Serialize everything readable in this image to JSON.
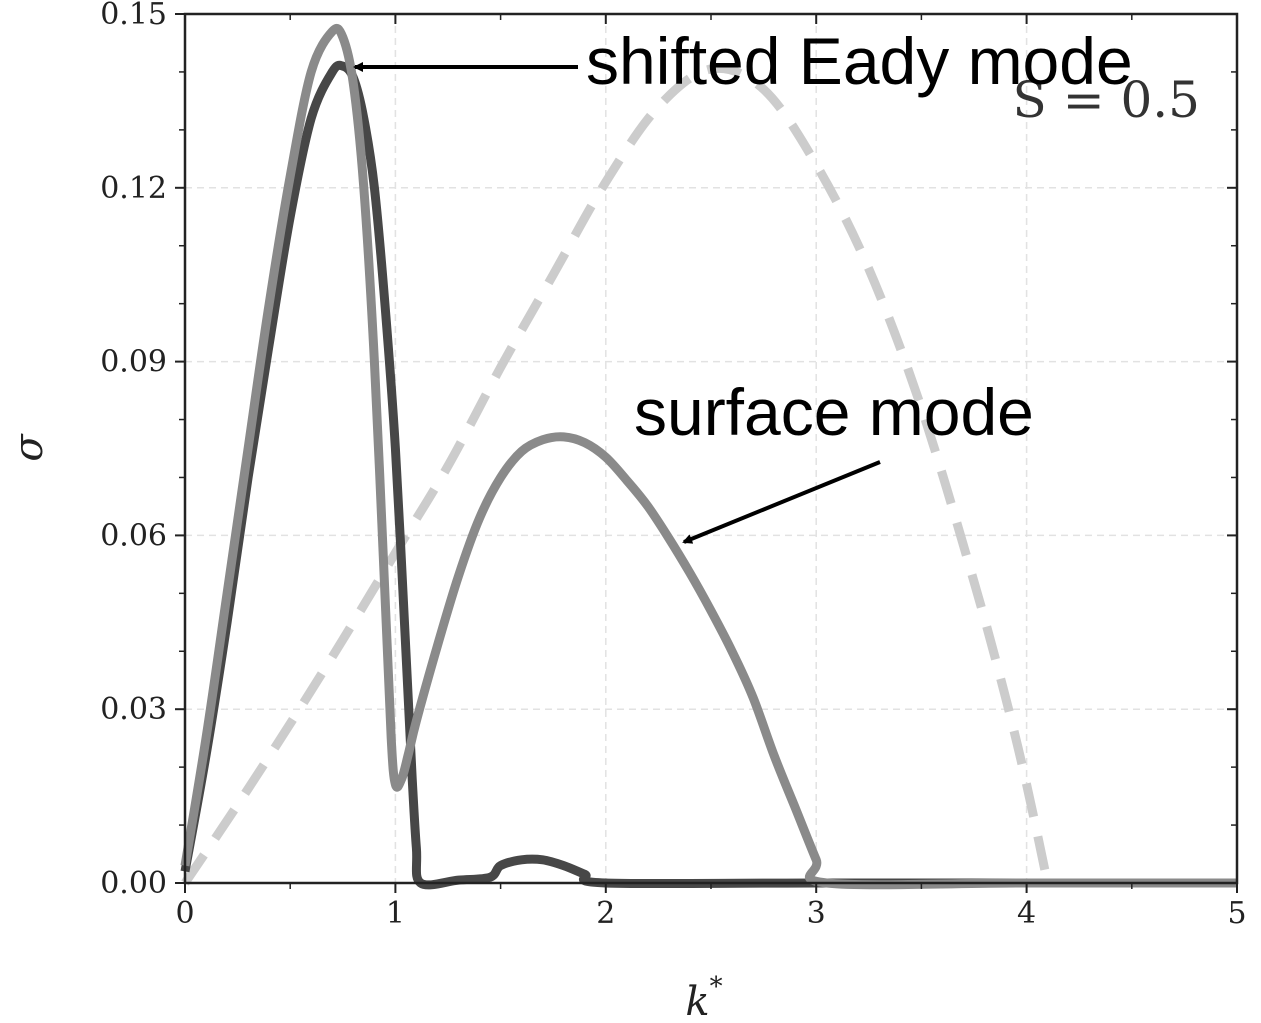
{
  "chart_data": {
    "type": "line",
    "xlabel": "k",
    "xlabel_sup": "*",
    "ylabel": "σ",
    "xlim": [
      0,
      5
    ],
    "ylim": [
      0,
      0.15
    ],
    "xticks": [
      "0",
      "1",
      "2",
      "3",
      "4",
      "5"
    ],
    "yticks": [
      "0.00",
      "0.03",
      "0.06",
      "0.09",
      "0.12",
      "0.15"
    ],
    "grid": true,
    "annotations": {
      "shifted": "shifted Eady mode",
      "surface": "surface mode",
      "param": "S = 0.5"
    },
    "colors": {
      "dark": "#474747",
      "medium": "#8a8a8a",
      "light": "#cccccc"
    },
    "series": [
      {
        "style": "dashed",
        "color": "#cccccc",
        "x": [
          0,
          0.25,
          0.5,
          0.75,
          1.0,
          1.25,
          1.5,
          1.75,
          2.0,
          2.25,
          2.5,
          2.75,
          3.0,
          3.25,
          3.5,
          3.75,
          3.9,
          4.0,
          4.1
        ],
        "y": [
          0,
          0.0135,
          0.0275,
          0.042,
          0.057,
          0.072,
          0.089,
          0.105,
          0.121,
          0.134,
          0.1405,
          0.137,
          0.124,
          0.106,
          0.082,
          0.052,
          0.032,
          0.017,
          0
        ]
      },
      {
        "style": "solid",
        "color": "#474747",
        "x": [
          0,
          0.1,
          0.2,
          0.3,
          0.4,
          0.5,
          0.6,
          0.7,
          0.75,
          0.8,
          0.85,
          0.9,
          0.95,
          1.0,
          1.05,
          1.08,
          1.1,
          1.12,
          1.3,
          1.45,
          1.5,
          1.6,
          1.7,
          1.8,
          1.9,
          2.0,
          3.0,
          4.0,
          5.0
        ],
        "y": [
          0.002,
          0.022,
          0.045,
          0.07,
          0.093,
          0.115,
          0.132,
          0.14,
          0.141,
          0.139,
          0.132,
          0.12,
          0.1,
          0.075,
          0.04,
          0.018,
          0.006,
          0,
          0.0005,
          0.001,
          0.003,
          0.004,
          0.004,
          0.003,
          0.0015,
          0,
          0,
          0,
          0
        ]
      },
      {
        "style": "solid",
        "color": "#8a8a8a",
        "x": [
          0,
          0.1,
          0.2,
          0.3,
          0.4,
          0.5,
          0.6,
          0.7,
          0.75,
          0.8,
          0.85,
          0.9,
          0.95,
          0.98,
          1.0,
          1.03,
          1.06,
          1.1,
          1.2,
          1.3,
          1.4,
          1.5,
          1.6,
          1.7,
          1.8,
          1.9,
          2.0,
          2.1,
          2.2,
          2.3,
          2.4,
          2.5,
          2.6,
          2.7,
          2.8,
          2.9,
          3.0,
          3.05,
          4.0,
          5.0
        ],
        "y": [
          0.003,
          0.025,
          0.05,
          0.075,
          0.1,
          0.122,
          0.14,
          0.147,
          0.146,
          0.138,
          0.12,
          0.09,
          0.05,
          0.025,
          0.017,
          0.018,
          0.022,
          0.028,
          0.041,
          0.053,
          0.063,
          0.07,
          0.0745,
          0.0765,
          0.077,
          0.076,
          0.0735,
          0.0695,
          0.065,
          0.0595,
          0.0535,
          0.047,
          0.04,
          0.032,
          0.022,
          0.013,
          0.004,
          0,
          0,
          0
        ]
      }
    ]
  }
}
